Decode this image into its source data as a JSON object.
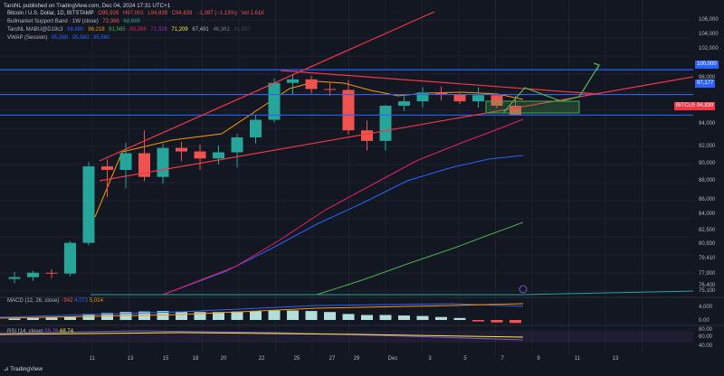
{
  "header": {
    "publisher": "TaroNL published on TradingView.com, Dec 04, 2024 17:31 UTC+1"
  },
  "legend": {
    "symbol": "Bitcoin / U.S. Dollar, 1D, BITSTAMP",
    "ohlc": {
      "o": "O95,926",
      "h": "H97,001",
      "l": "L94,839",
      "c": "C94,839",
      "chg": "−1,087 (−1.13%)",
      "vol": "Vol 1.61K"
    },
    "bull_band": {
      "label": "Bullmarket Support Band · 1W (close)",
      "v1": "72,368",
      "v2": "68,669"
    },
    "taro": {
      "label": "TaroNL MABU@D19c3",
      "values": [
        "88,680",
        "96,218",
        "81,565",
        "93,266",
        "71,328",
        "71,209",
        "67,491",
        "46,362",
        "41,997"
      ]
    },
    "vwap": {
      "label": "VWAP (Session)",
      "values": [
        "95,560",
        "95,560",
        "95,560"
      ]
    }
  },
  "price_labels": {
    "level_high": "100,000",
    "level_mid": "97,177",
    "current": "94,839",
    "ticker": "BITCUSD"
  },
  "macd": {
    "label": "MACD (12, 26, close)",
    "v1": "−942",
    "v2": "4,072",
    "v3": "5,014"
  },
  "rsi": {
    "label": "RSI (14, close)",
    "v1": "58.76",
    "v2": "68.74"
  },
  "footer": {
    "brand": "TradingView"
  },
  "colors": {
    "bg": "#131722",
    "up": "#26a69a",
    "down": "#ef5350",
    "level": "#2962ff",
    "trend": "#f23645",
    "grid": "#1e222d"
  },
  "chart_data": {
    "type": "candlestick",
    "title": "Bitcoin / U.S. Dollar, 1D, BITSTAMP",
    "x_ticks": [
      "11",
      "13",
      "15",
      "18",
      "20",
      "22",
      "25",
      "27",
      "29",
      "Dec",
      "3",
      "5",
      "7",
      "9",
      "11",
      "13"
    ],
    "y_ticks": [
      "106,000",
      "104,000",
      "102,000",
      "98,000",
      "94,000",
      "92,000",
      "90,000",
      "88,000",
      "86,000",
      "84,000",
      "82,500",
      "80,930",
      "79,410",
      "77,900",
      "76,400",
      "75,100"
    ],
    "candles": [
      {
        "o": 76200,
        "h": 77000,
        "l": 75700,
        "c": 76400
      },
      {
        "o": 76400,
        "h": 77100,
        "l": 76000,
        "c": 76900
      },
      {
        "o": 76900,
        "h": 77300,
        "l": 76300,
        "c": 76800
      },
      {
        "o": 76800,
        "h": 80500,
        "l": 76500,
        "c": 80300
      },
      {
        "o": 80300,
        "h": 89500,
        "l": 80000,
        "c": 89000
      },
      {
        "o": 89000,
        "h": 89800,
        "l": 85500,
        "c": 88600
      },
      {
        "o": 88600,
        "h": 91700,
        "l": 86500,
        "c": 90500
      },
      {
        "o": 90500,
        "h": 93100,
        "l": 87300,
        "c": 87800
      },
      {
        "o": 87800,
        "h": 91600,
        "l": 87000,
        "c": 91100
      },
      {
        "o": 91100,
        "h": 91800,
        "l": 89600,
        "c": 90700
      },
      {
        "o": 90700,
        "h": 91500,
        "l": 88600,
        "c": 89900
      },
      {
        "o": 89900,
        "h": 91400,
        "l": 89200,
        "c": 90600
      },
      {
        "o": 90600,
        "h": 92700,
        "l": 88900,
        "c": 92300
      },
      {
        "o": 92300,
        "h": 94800,
        "l": 91600,
        "c": 94300
      },
      {
        "o": 94300,
        "h": 99000,
        "l": 94000,
        "c": 98500
      },
      {
        "o": 98500,
        "h": 99500,
        "l": 97100,
        "c": 98900
      },
      {
        "o": 98900,
        "h": 99300,
        "l": 97300,
        "c": 97800
      },
      {
        "o": 97800,
        "h": 98500,
        "l": 97000,
        "c": 97700
      },
      {
        "o": 97700,
        "h": 98800,
        "l": 92600,
        "c": 93100
      },
      {
        "o": 93100,
        "h": 94200,
        "l": 90800,
        "c": 91900
      },
      {
        "o": 91900,
        "h": 96000,
        "l": 90800,
        "c": 95900
      },
      {
        "o": 95900,
        "h": 97000,
        "l": 95300,
        "c": 96400
      },
      {
        "o": 96400,
        "h": 98000,
        "l": 95700,
        "c": 97400
      },
      {
        "o": 97400,
        "h": 98100,
        "l": 96500,
        "c": 97200
      },
      {
        "o": 97200,
        "h": 97500,
        "l": 96100,
        "c": 96400
      },
      {
        "o": 96400,
        "h": 98000,
        "l": 95700,
        "c": 97100
      },
      {
        "o": 97100,
        "h": 97300,
        "l": 95600,
        "c": 95900
      },
      {
        "o": 95900,
        "h": 97000,
        "l": 94800,
        "c": 94839
      }
    ],
    "levels": [
      100000,
      97177,
      94839
    ],
    "macd_hist": [
      1.5,
      2,
      2.5,
      3.5,
      6,
      7,
      8,
      8.5,
      9,
      8.5,
      8,
      8,
      8.5,
      9,
      9.5,
      9.5,
      9,
      8,
      6,
      5,
      5,
      4.5,
      4,
      3,
      2,
      -1.5,
      -2.5,
      -3
    ],
    "rsi_range": [
      20,
      80
    ],
    "rsi_values": [
      58.76,
      68.74
    ]
  }
}
